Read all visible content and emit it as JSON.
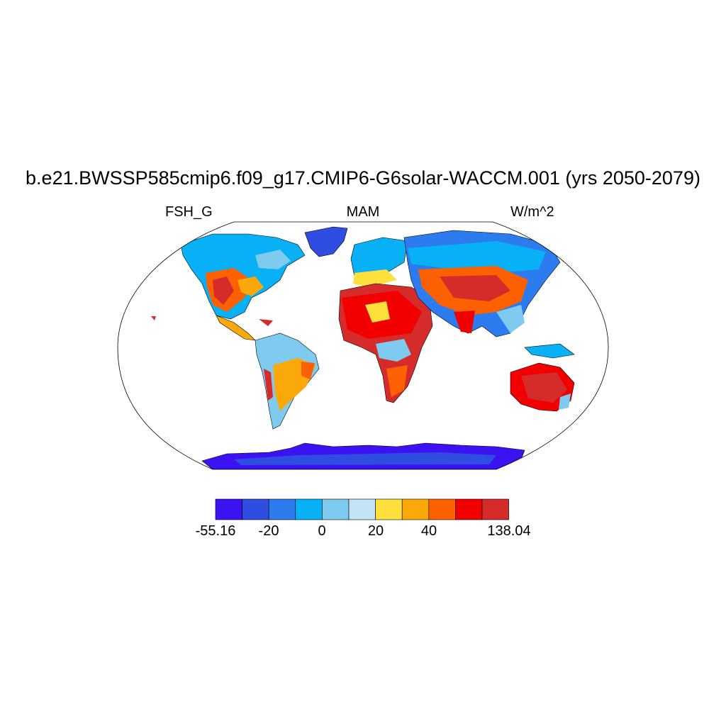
{
  "title": "b.e21.BWSSP585cmip6.f09_g17.CMIP6-G6solar-WACCM.001 (yrs 2050-2079)",
  "left_label": "FSH_G",
  "center_label": "MAM",
  "right_label": "W/m^2",
  "colorbar": {
    "colors": [
      "#3d12f2",
      "#2f4de0",
      "#2c7cf0",
      "#08b0f5",
      "#7fcaef",
      "#c4e4f5",
      "#fde03c",
      "#fba90a",
      "#fb6100",
      "#f20000",
      "#d62b2b"
    ],
    "tick_labels": [
      "-55.16",
      "-20",
      "0",
      "20",
      "40",
      "138.04"
    ],
    "tick_positions": [
      0,
      1,
      2,
      3,
      4,
      5
    ]
  },
  "regions": {
    "ocean": "#ffffff",
    "land_outline": "#000000"
  }
}
